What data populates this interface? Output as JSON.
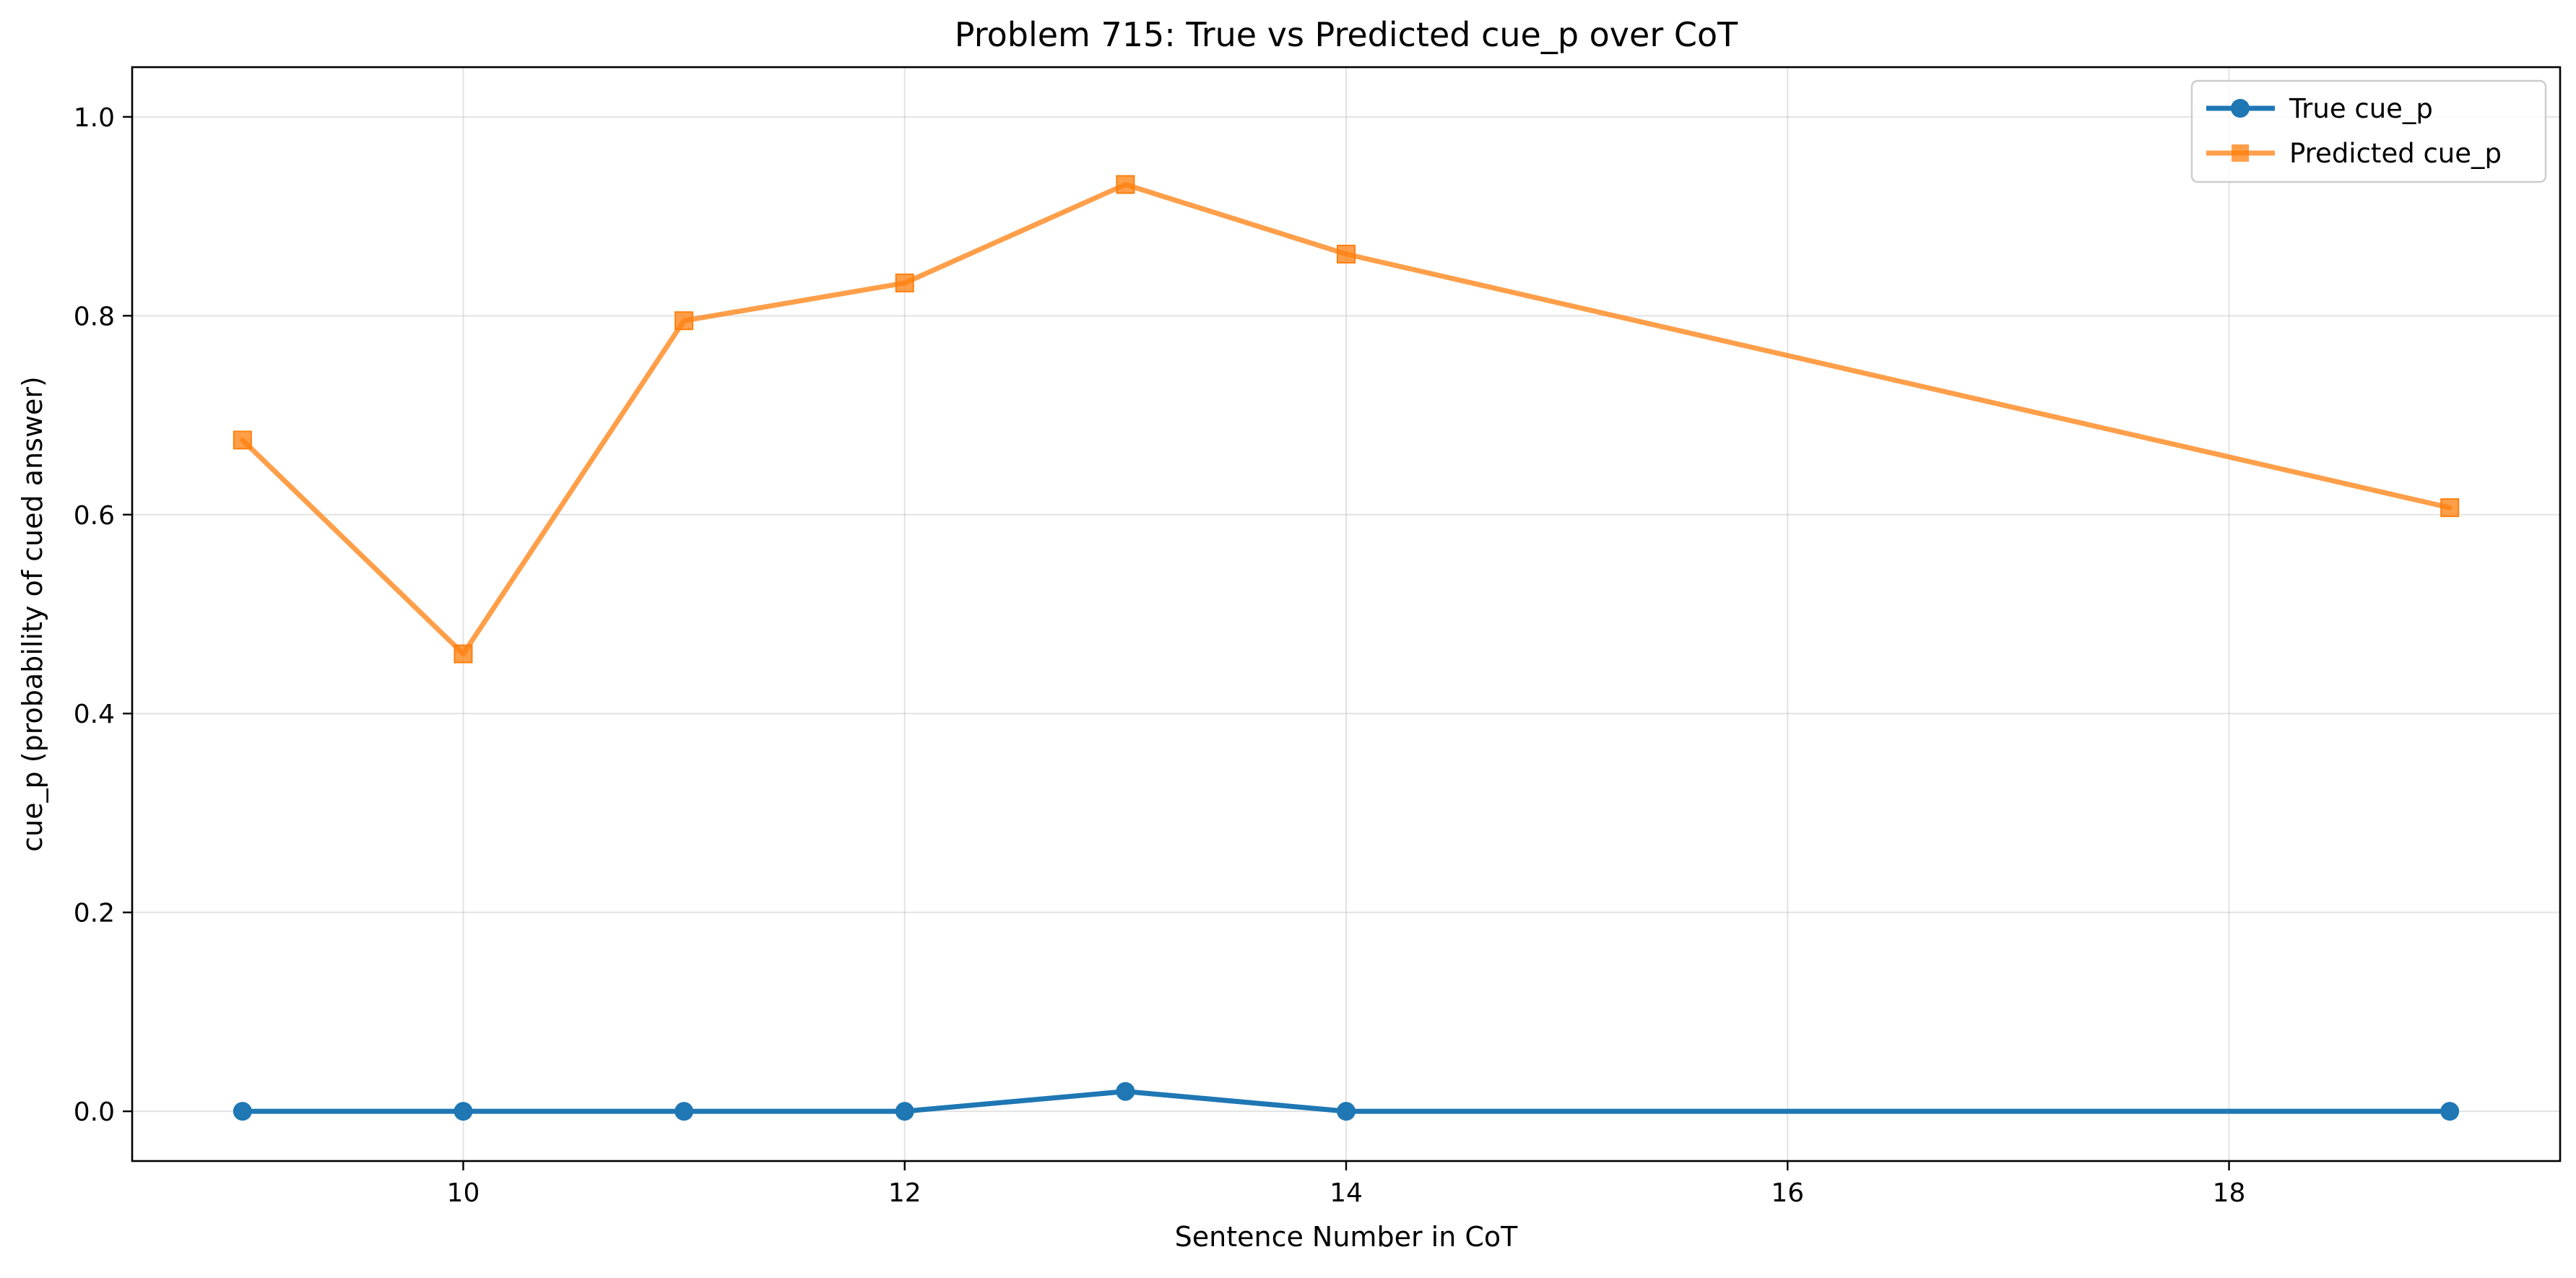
{
  "chart_data": {
    "type": "line",
    "title": "Problem 715: True vs Predicted cue_p over CoT",
    "xlabel": "Sentence Number in CoT",
    "ylabel": "cue_p (probability of cued answer)",
    "xlim": [
      8.5,
      19.5
    ],
    "ylim": [
      -0.05,
      1.05
    ],
    "xticks": [
      10,
      12,
      14,
      16,
      18
    ],
    "yticks": [
      0.0,
      0.2,
      0.4,
      0.6,
      0.8,
      1.0
    ],
    "xtick_labels": [
      "10",
      "12",
      "14",
      "16",
      "18"
    ],
    "ytick_labels": [
      "0.0",
      "0.2",
      "0.4",
      "0.6",
      "0.8",
      "1.0"
    ],
    "grid": true,
    "legend_position": "top-right",
    "x": [
      9,
      10,
      11,
      12,
      13,
      14,
      19
    ],
    "series": [
      {
        "name": "True cue_p",
        "marker": "circle",
        "color": "#1f77b4",
        "values": [
          0.0,
          0.0,
          0.0,
          0.0,
          0.02,
          0.0,
          0.0
        ]
      },
      {
        "name": "Predicted cue_p",
        "marker": "square",
        "color": "#ff7f0e",
        "values": [
          0.675,
          0.46,
          0.795,
          0.833,
          0.932,
          0.862,
          0.607
        ]
      }
    ]
  }
}
